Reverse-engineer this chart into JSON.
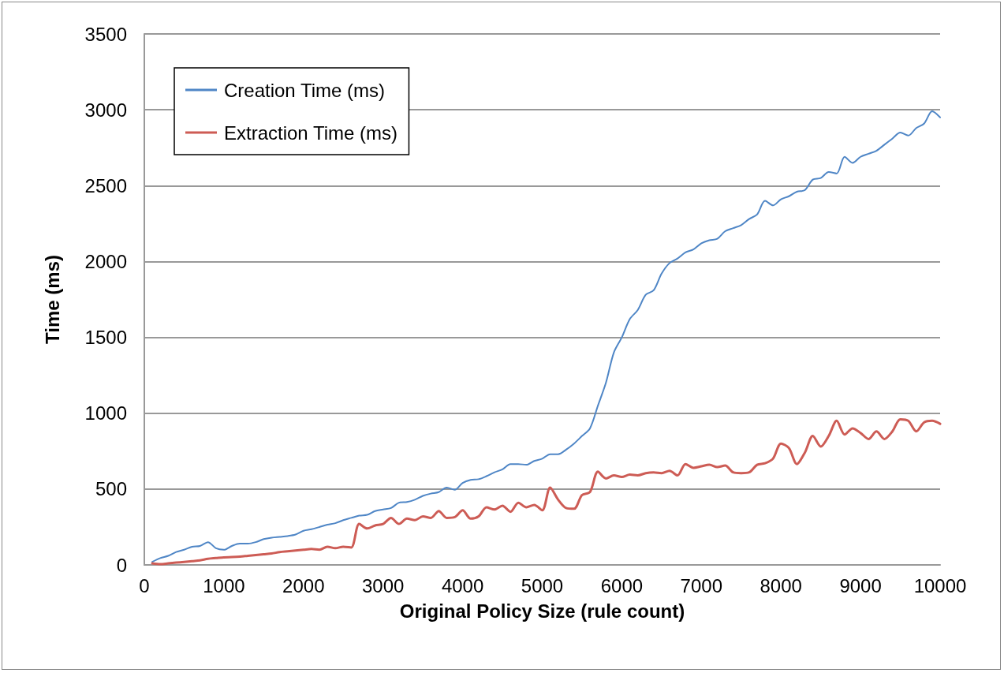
{
  "chart_data": {
    "type": "line",
    "xlabel": "Original Policy Size (rule count)",
    "ylabel": "Time (ms)",
    "x": [
      100,
      200,
      300,
      400,
      500,
      600,
      700,
      800,
      900,
      1000,
      1100,
      1200,
      1300,
      1400,
      1500,
      1600,
      1700,
      1800,
      1900,
      2000,
      2100,
      2200,
      2300,
      2400,
      2500,
      2600,
      2700,
      2800,
      2900,
      3000,
      3100,
      3200,
      3300,
      3400,
      3500,
      3600,
      3700,
      3800,
      3900,
      4000,
      4100,
      4200,
      4300,
      4400,
      4500,
      4600,
      4700,
      4800,
      4900,
      5000,
      5100,
      5200,
      5300,
      5400,
      5500,
      5600,
      5700,
      5800,
      5900,
      6000,
      6100,
      6200,
      6300,
      6400,
      6500,
      6600,
      6700,
      6800,
      6900,
      7000,
      7100,
      7200,
      7300,
      7400,
      7500,
      7600,
      7700,
      7800,
      7900,
      8000,
      8100,
      8200,
      8300,
      8400,
      8500,
      8600,
      8700,
      8800,
      8900,
      9000,
      9100,
      9200,
      9300,
      9400,
      9500,
      9600,
      9700,
      9800,
      9900,
      10000
    ],
    "series": [
      {
        "name": "Creation Time (ms)",
        "color": "#4f86c6",
        "values": [
          20,
          45,
          60,
          85,
          100,
          120,
          125,
          150,
          110,
          100,
          125,
          140,
          140,
          150,
          170,
          180,
          185,
          190,
          200,
          225,
          235,
          250,
          265,
          275,
          295,
          310,
          325,
          330,
          355,
          365,
          375,
          410,
          415,
          430,
          455,
          470,
          480,
          510,
          495,
          540,
          560,
          565,
          585,
          610,
          630,
          665,
          665,
          660,
          685,
          700,
          730,
          730,
          760,
          800,
          850,
          900,
          1050,
          1200,
          1400,
          1500,
          1620,
          1680,
          1780,
          1810,
          1920,
          1990,
          2020,
          2060,
          2080,
          2120,
          2140,
          2150,
          2200,
          2220,
          2240,
          2280,
          2310,
          2400,
          2370,
          2410,
          2430,
          2460,
          2470,
          2540,
          2550,
          2590,
          2580,
          2690,
          2650,
          2690,
          2710,
          2730,
          2770,
          2810,
          2850,
          2830,
          2880,
          2910,
          2990,
          2950
        ]
      },
      {
        "name": "Extraction Time (ms)",
        "color": "#cd5c55",
        "values": [
          10,
          5,
          10,
          15,
          20,
          25,
          30,
          40,
          45,
          50,
          52,
          55,
          60,
          65,
          70,
          75,
          85,
          90,
          95,
          100,
          105,
          100,
          120,
          110,
          120,
          115,
          270,
          240,
          260,
          270,
          310,
          270,
          305,
          295,
          320,
          310,
          355,
          310,
          315,
          360,
          305,
          320,
          380,
          365,
          390,
          350,
          410,
          380,
          395,
          360,
          510,
          430,
          375,
          370,
          460,
          480,
          615,
          570,
          590,
          580,
          595,
          590,
          605,
          610,
          605,
          620,
          590,
          665,
          640,
          650,
          660,
          645,
          655,
          610,
          605,
          610,
          660,
          670,
          700,
          800,
          770,
          665,
          740,
          850,
          780,
          850,
          950,
          860,
          900,
          870,
          830,
          880,
          830,
          880,
          960,
          950,
          880,
          940,
          950,
          930
        ]
      }
    ],
    "xlim": [
      0,
      10000
    ],
    "xticks": [
      0,
      1000,
      2000,
      3000,
      4000,
      5000,
      6000,
      7000,
      8000,
      9000,
      10000
    ],
    "ylim": [
      0,
      3500
    ],
    "yticks": [
      0,
      500,
      1000,
      1500,
      2000,
      2500,
      3000,
      3500
    ],
    "grid": "y",
    "legend": "top left",
    "marker": "none",
    "line_style": "solid"
  }
}
